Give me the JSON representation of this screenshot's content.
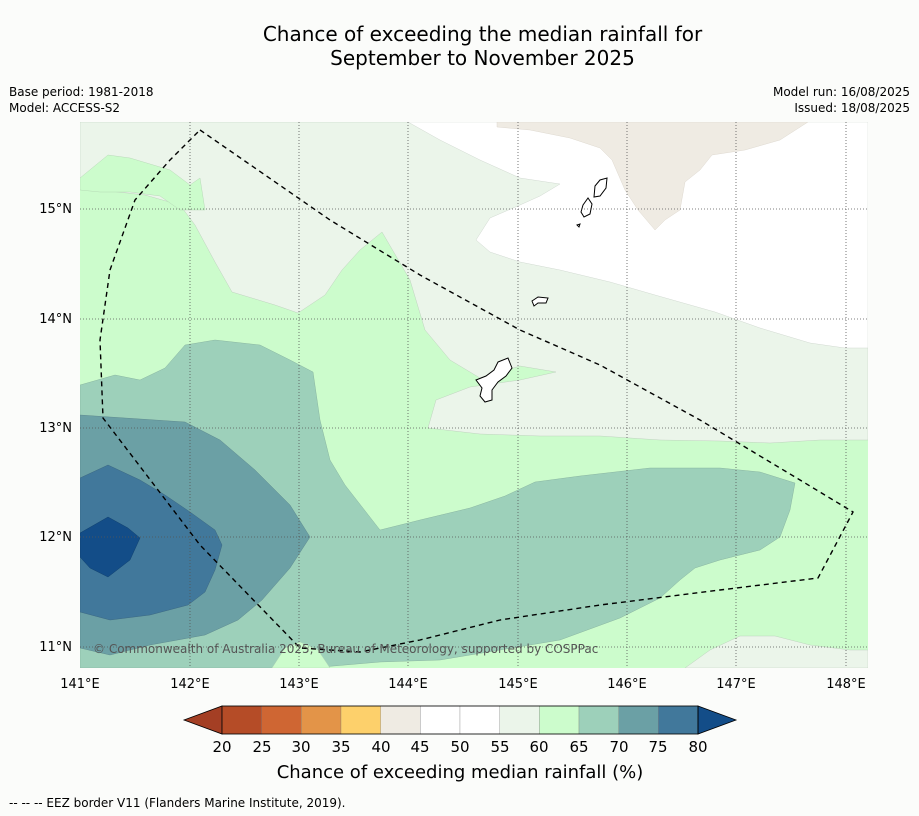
{
  "title": {
    "line1": "Chance of exceeding the median rainfall for",
    "line2": "September to November 2025"
  },
  "meta": {
    "base_period": "Base period: 1981-2018",
    "model": "Model: ACCESS-S2",
    "model_run": "Model run: 16/08/2025",
    "issued": "Issued: 18/08/2025"
  },
  "map": {
    "lon_labels": [
      "141°E",
      "142°E",
      "143°E",
      "144°E",
      "145°E",
      "146°E",
      "147°E",
      "148°E"
    ],
    "lat_labels": [
      "15°N",
      "14°N",
      "13°N",
      "12°N",
      "11°N"
    ],
    "copyright": "© Commonwealth of Australia 2025, Bureau of Meteorology, supported by COSPPac",
    "colors": {
      "c35": "#fdd06b",
      "c40": "#efebe3",
      "c50": "#ffffff",
      "c55": "#ebf5ea",
      "c60": "#ccfccc",
      "c65": "#9dd0ba",
      "c70": "#6ba0a5",
      "c75": "#41789b",
      "c80": "#134d88"
    }
  },
  "colorbar": {
    "ticks": [
      "20",
      "25",
      "30",
      "35",
      "40",
      "45",
      "50",
      "55",
      "60",
      "65",
      "70",
      "75",
      "80"
    ],
    "colors": [
      "#a43f24",
      "#b54c27",
      "#cf6633",
      "#e39448",
      "#fdd06b",
      "#efebe3",
      "#ffffff",
      "#ffffff",
      "#ebf5ea",
      "#ccfccc",
      "#9dd0ba",
      "#6ba0a5",
      "#41789b",
      "#134d88"
    ],
    "label": "Chance of exceeding median rainfall (%)"
  },
  "footnote": "-- -- -- EEZ border V11 (Flanders Marine Institute, 2019)."
}
